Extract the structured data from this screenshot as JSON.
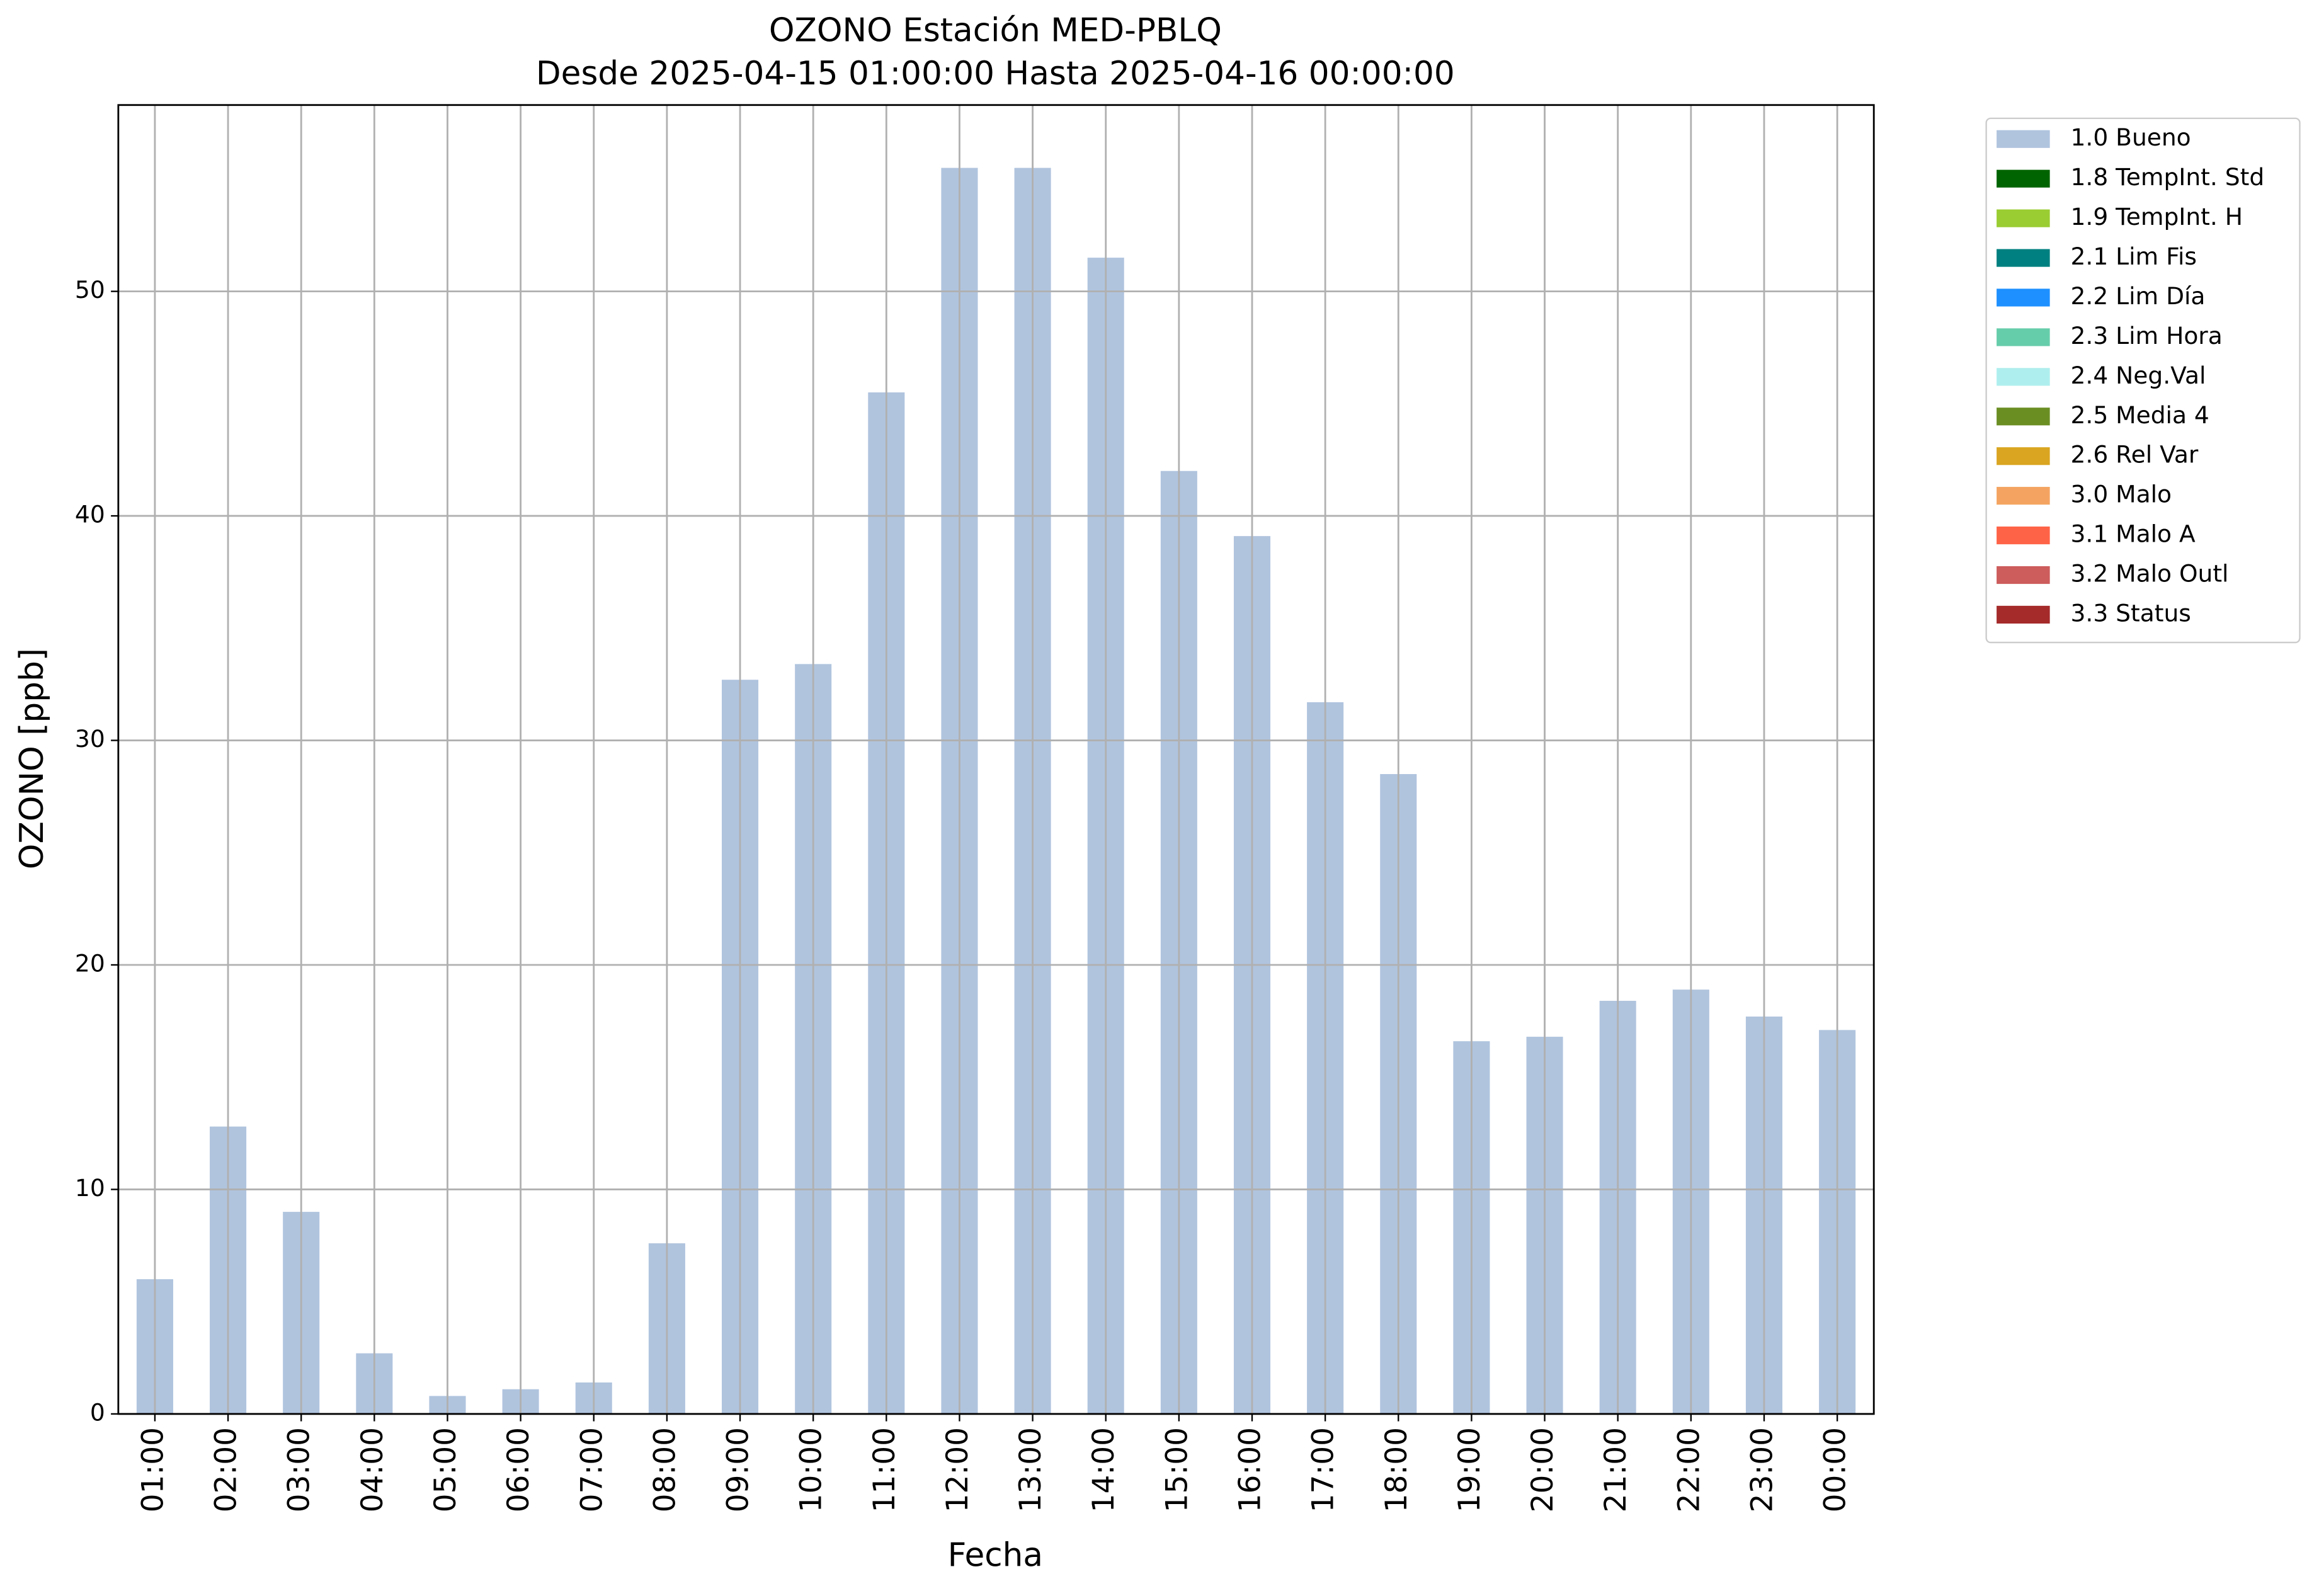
{
  "chart_data": {
    "type": "bar",
    "title": "OZONO Estación MED-PBLQ",
    "subtitle": "Desde 2025-04-15 01:00:00 Hasta 2025-04-16 00:00:00",
    "x_label": "Fecha",
    "y_label": "OZONO [ppb]",
    "categories": [
      "01:00",
      "02:00",
      "03:00",
      "04:00",
      "05:00",
      "06:00",
      "07:00",
      "08:00",
      "09:00",
      "10:00",
      "11:00",
      "12:00",
      "13:00",
      "14:00",
      "15:00",
      "16:00",
      "17:00",
      "18:00",
      "19:00",
      "20:00",
      "21:00",
      "22:00",
      "23:00",
      "00:00"
    ],
    "series": [
      {
        "name": "1.0 Bueno",
        "color": "#b0c4de",
        "values": [
          6.0,
          12.8,
          9.0,
          2.7,
          0.8,
          1.1,
          1.4,
          7.6,
          32.7,
          33.4,
          45.5,
          55.5,
          55.5,
          51.5,
          42.0,
          39.1,
          31.7,
          28.5,
          16.6,
          16.8,
          18.4,
          18.9,
          17.7,
          17.1
        ]
      },
      {
        "name": "1.8 TempInt. Std",
        "color": "#006400"
      },
      {
        "name": "1.9 TempInt. H",
        "color": "#9acd32"
      },
      {
        "name": "2.1 Lim Fis",
        "color": "#008080"
      },
      {
        "name": "2.2 Lim Día",
        "color": "#1e90ff"
      },
      {
        "name": "2.3 Lim Hora",
        "color": "#66cdaa"
      },
      {
        "name": "2.4 Neg.Val",
        "color": "#afeeee"
      },
      {
        "name": "2.5 Media 4",
        "color": "#6b8e23"
      },
      {
        "name": "2.6 Rel Var",
        "color": "#daa520"
      },
      {
        "name": "3.0 Malo",
        "color": "#f4a460"
      },
      {
        "name": "3.1 Malo A",
        "color": "#ff6347"
      },
      {
        "name": "3.2 Malo Outl",
        "color": "#cd5c5c"
      },
      {
        "name": "3.3 Status",
        "color": "#a52a2a"
      }
    ],
    "ylim": [
      0,
      58.3
    ],
    "yticks": [
      0,
      10,
      20,
      30,
      40,
      50
    ],
    "grid": true,
    "legend": "outside upper right"
  }
}
